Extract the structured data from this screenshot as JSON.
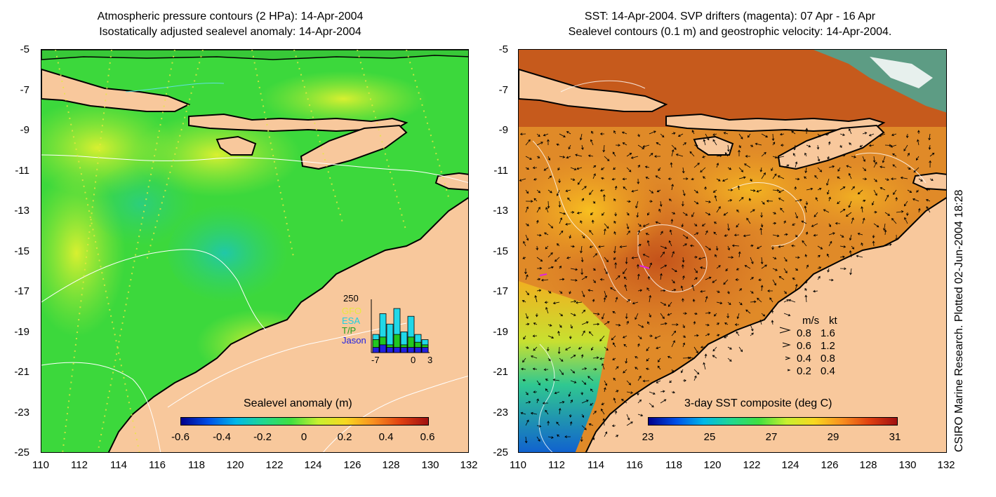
{
  "left": {
    "title_line1": "Atmospheric pressure contours (2 HPa): 14-Apr-2004",
    "title_line2": "Isostatically adjusted sealevel anomaly: 14-Apr-2004",
    "colorbar_title": "Sealevel anomaly (m)",
    "colorbar_ticks": [
      "-0.6",
      "-0.4",
      "-0.2",
      "0",
      "0.2",
      "0.4",
      "0.6"
    ],
    "inset": {
      "ymax_label": "250",
      "legend": [
        {
          "label": "GFO",
          "color": "#e8e840"
        },
        {
          "label": "ESA",
          "color": "#20d0e0"
        },
        {
          "label": "T/P",
          "color": "#20c020"
        },
        {
          "label": "Jason",
          "color": "#2020e0"
        }
      ],
      "x_labels": [
        "-7",
        "0",
        "3"
      ],
      "bars": [
        {
          "cyan": 0.35,
          "green": 0.25,
          "blue": 0.1
        },
        {
          "cyan": 0.75,
          "green": 0.3,
          "blue": 0.15
        },
        {
          "cyan": 0.55,
          "green": 0.15,
          "blue": 0.1
        },
        {
          "cyan": 0.85,
          "green": 0.35,
          "blue": 0.1
        },
        {
          "cyan": 0.4,
          "green": 0.15,
          "blue": 0.1
        },
        {
          "cyan": 0.7,
          "green": 0.3,
          "blue": 0.1
        },
        {
          "cyan": 0.35,
          "green": 0.2,
          "blue": 0.1
        },
        {
          "cyan": 0.25,
          "green": 0.15,
          "blue": 0.1
        }
      ]
    }
  },
  "right": {
    "title_line1": "SST: 14-Apr-2004. SVP drifters (magenta): 07 Apr - 16 Apr",
    "title_line2": "Sealevel contours (0.1 m) and geostrophic velocity: 14-Apr-2004.",
    "colorbar_title": "3-day SST composite (deg C)",
    "colorbar_ticks": [
      "23",
      "25",
      "27",
      "29",
      "31"
    ],
    "legend_header": {
      "ms": "m/s",
      "kt": "kt"
    },
    "legend_rows": [
      {
        "ms": "0.8",
        "kt": "1.6"
      },
      {
        "ms": "0.6",
        "kt": "1.2"
      },
      {
        "ms": "0.4",
        "kt": "0.8"
      },
      {
        "ms": "0.2",
        "kt": "0.4"
      }
    ]
  },
  "axes": {
    "x_ticks": [
      "110",
      "112",
      "114",
      "116",
      "118",
      "120",
      "122",
      "124",
      "126",
      "128",
      "130",
      "132"
    ],
    "y_ticks": [
      "-5",
      "-7",
      "-9",
      "-11",
      "-13",
      "-15",
      "-17",
      "-19",
      "-21",
      "-23",
      "-25"
    ]
  },
  "credit": "CSIRO Marine Research. Plotted 02-Jun-2004 18:28",
  "colors": {
    "land": "#f8c89c",
    "sla_green": "#38d838",
    "sst_orange": "#e89028"
  }
}
